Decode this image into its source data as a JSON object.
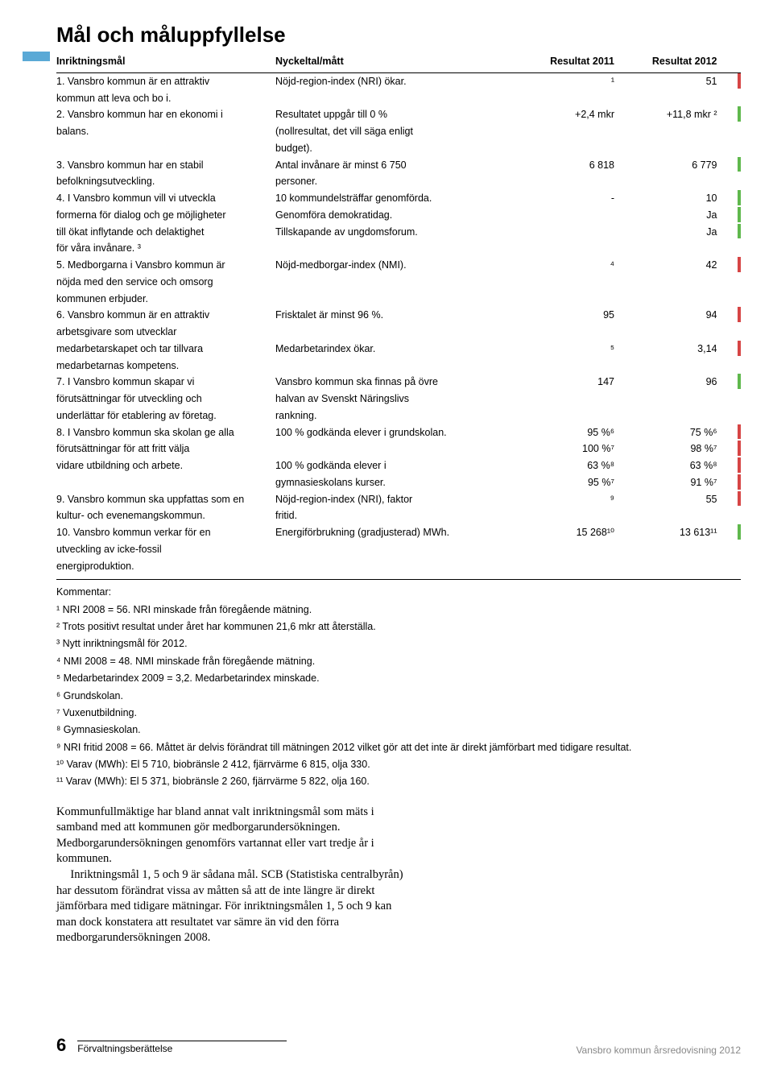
{
  "colors": {
    "tab": "#5aa9d6",
    "green": "#5fb84d",
    "red": "#d64545",
    "yellow": "#e6c84a",
    "grey_text": "#888888"
  },
  "title": "Mål och måluppfyllelse",
  "headers": {
    "goal": "Inriktningsmål",
    "metric": "Nyckeltal/mått",
    "r2011": "Resultat 2011",
    "r2012": "Resultat 2012"
  },
  "rows": [
    {
      "goal": "1. Vansbro kommun är en attraktiv kommun att leva och bo i.",
      "metric": "Nöjd-region-index (NRI) ökar.",
      "r1": "¹",
      "r2": "51",
      "status": "red"
    },
    {
      "goal": "2. Vansbro kommun har en ekonomi i balans.",
      "metric": "Resultatet uppgår till 0 % (nollresultat, det vill säga enligt budget).",
      "r1": "+2,4 mkr",
      "r2": "+11,8 mkr ²",
      "status": "green"
    },
    {
      "goal": "3. Vansbro kommun har en stabil befolkningsutveckling.",
      "metric": "Antal invånare är minst 6 750 personer.",
      "r1": "6 818",
      "r2": "6 779",
      "status": "green"
    },
    {
      "goal": "4. I Vansbro kommun vill vi utveckla formerna för dialog och ge möjligheter till ökat inflytande och delaktighet för våra invånare. ³",
      "sub": [
        {
          "metric": "10 kommundelsträffar genomförda.",
          "r1": "-",
          "r2": "10",
          "status": "green"
        },
        {
          "metric": "Genomföra demokratidag.",
          "r1": "",
          "r2": "Ja",
          "status": "green"
        },
        {
          "metric": "Tillskapande av ungdomsforum.",
          "r1": "",
          "r2": "Ja",
          "status": "green"
        }
      ]
    },
    {
      "goal": "5. Medborgarna i Vansbro kommun är nöjda med den service och omsorg kommunen erbjuder.",
      "metric": "Nöjd-medborgar-index (NMI).",
      "r1": "⁴",
      "r2": "42",
      "status": "red"
    },
    {
      "goal": "6. Vansbro kommun är en attraktiv arbetsgivare som utvecklar medarbetarskapet och tar tillvara medarbetarnas kompetens.",
      "sub": [
        {
          "metric": "Frisktalet är minst 96 %.",
          "r1": "95",
          "r2": "94",
          "status": "red"
        },
        {
          "metric_blank": true
        },
        {
          "metric": "Medarbetarindex ökar.",
          "r1": "⁵",
          "r2": "3,14",
          "status": "red"
        }
      ]
    },
    {
      "goal": "7. I Vansbro kommun skapar vi förutsättningar för utveckling och underlättar för etablering av företag.",
      "metric": "Vansbro kommun ska finnas på övre halvan av Svenskt Näringslivs rankning.",
      "r1": "147",
      "r2": "96",
      "status": "green"
    },
    {
      "goal": "8. I Vansbro kommun ska skolan ge alla förutsättningar för att fritt välja vidare utbildning och arbete.",
      "sub": [
        {
          "metric": "100 % godkända elever i grundskolan.",
          "r1": "95 %⁶",
          "r2": "75 %⁶",
          "status": "red"
        },
        {
          "metric": "",
          "r1": "100 %⁷",
          "r2": "98 %⁷",
          "status": "red"
        },
        {
          "metric": "100 % godkända elever i",
          "r1": "63 %⁸",
          "r2": "63 %⁸",
          "status": "red"
        },
        {
          "metric": "gymnasieskolans kurser.",
          "r1": "95 %⁷",
          "r2": "91 %⁷",
          "status": "red"
        }
      ]
    },
    {
      "goal": "9. Vansbro kommun ska uppfattas som en kultur- och evenemangskommun.",
      "metric": "Nöjd-region-index (NRI), faktor fritid.",
      "r1": "⁹",
      "r2": "55",
      "status": "red"
    },
    {
      "goal": "10. Vansbro kommun verkar för en utveckling av icke-fossil energiproduktion.",
      "metric": "Energiförbrukning (gradjusterad) MWh.",
      "r1": "15 268¹⁰",
      "r2": "13 613¹¹",
      "status": "green"
    }
  ],
  "comments_title": "Kommentar:",
  "comments": [
    "¹ NRI 2008 = 56. NRI minskade från föregående mätning.",
    "² Trots positivt resultat under året har kommunen 21,6 mkr att återställa.",
    "³ Nytt inriktningsmål för 2012.",
    "⁴ NMI 2008 = 48. NMI minskade från föregående mätning.",
    "⁵ Medarbetarindex 2009 = 3,2. Medarbetarindex minskade.",
    "⁶ Grundskolan.",
    "⁷ Vuxenutbildning.",
    "⁸ Gymnasieskolan.",
    "⁹ NRI fritid 2008 = 66. Måttet är delvis förändrat till mätningen 2012 vilket gör att det inte är direkt jämförbart med tidigare resultat.",
    "¹⁰ Varav (MWh): El 5 710, biobränsle 2 412, fjärrvärme 6 815, olja 330.",
    "¹¹ Varav (MWh): El 5 371, biobränsle 2 260, fjärrvärme 5 822, olja 160."
  ],
  "body": [
    "Kommunfullmäktige har bland annat valt inriktningsmål som mäts i samband med att kommunen gör medborgar­undersökningen. Medborgarundersökningen genomförs vartannat eller vart tredje år i kommunen.",
    "Inriktningsmål 1, 5 och 9 är sådana mål. SCB (Statistiska centralbyrån) har dessutom förändrat vissa av måtten så att de inte längre är direkt jämförbara med tidigare mätningar. För inriktningsmålen 1, 5 och 9 kan man dock konstatera att resultatet var sämre än vid den förra medborgarunder­sökningen 2008."
  ],
  "footer": {
    "page": "6",
    "section": "Förvaltningsberättelse",
    "right": "Vansbro kommun årsredovisning 2012"
  }
}
